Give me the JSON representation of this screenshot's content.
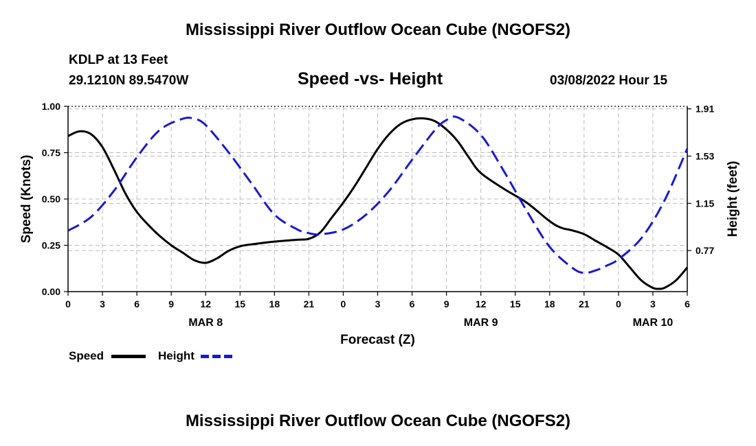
{
  "page": {
    "title_top": "Mississippi River Outflow Ocean Cube (NGOFS2)",
    "title_bottom": "Mississippi River Outflow Ocean Cube (NGOFS2)",
    "station": "KDLP at 13 Feet",
    "coords": "29.1210N  89.5470W",
    "subtitle": "Speed -vs- Height",
    "datetime": "03/08/2022 Hour 15"
  },
  "legend": {
    "speed_label": "Speed",
    "height_label": "Height"
  },
  "colors": {
    "speed": "#000000",
    "height": "#1a1acc",
    "grid": "#bbbbbb"
  },
  "chart_data": {
    "type": "line",
    "title": "Speed -vs- Height",
    "xlabel": "Forecast (Z)",
    "ylabel": "Speed (Knots)",
    "y2label": "Height (feet)",
    "x_hours_range": [
      0,
      54
    ],
    "x_tick_labels": [
      "0",
      "3",
      "6",
      "9",
      "12",
      "15",
      "18",
      "21",
      "0",
      "3",
      "6",
      "9",
      "12",
      "15",
      "18",
      "21",
      "0",
      "3",
      "6"
    ],
    "x_tick_hours": [
      0,
      3,
      6,
      9,
      12,
      15,
      18,
      21,
      24,
      27,
      30,
      33,
      36,
      39,
      42,
      45,
      48,
      51,
      54
    ],
    "date_labels": [
      {
        "label": "MAR 8",
        "hour": 12
      },
      {
        "label": "MAR 9",
        "hour": 36
      },
      {
        "label": "MAR 10",
        "hour": 51
      }
    ],
    "ylim": [
      0,
      1.0
    ],
    "y_ticks": [
      "0.00",
      "0.25",
      "0.50",
      "0.75",
      "1.00"
    ],
    "y2lim": [
      0.44,
      1.93
    ],
    "y2_ticks": [
      "0.77",
      "1.15",
      "1.53",
      "1.91"
    ],
    "series": [
      {
        "name": "Speed",
        "axis": "left",
        "style": "solid",
        "x": [
          0,
          1,
          2,
          3,
          4,
          5,
          6,
          7,
          8,
          9,
          10,
          11,
          12,
          13,
          14,
          15,
          16,
          18,
          20,
          21,
          22,
          23,
          24,
          25,
          26,
          27,
          28,
          29,
          30,
          31,
          32,
          33,
          34,
          35,
          36,
          38,
          40,
          42,
          43,
          44,
          45,
          46,
          47,
          48,
          49,
          50,
          51,
          51.5,
          52,
          53,
          54
        ],
        "values": [
          0.84,
          0.865,
          0.85,
          0.78,
          0.66,
          0.53,
          0.43,
          0.36,
          0.3,
          0.25,
          0.21,
          0.17,
          0.155,
          0.18,
          0.22,
          0.245,
          0.255,
          0.27,
          0.28,
          0.285,
          0.32,
          0.4,
          0.48,
          0.57,
          0.67,
          0.77,
          0.85,
          0.905,
          0.93,
          0.935,
          0.92,
          0.875,
          0.81,
          0.72,
          0.64,
          0.555,
          0.48,
          0.38,
          0.345,
          0.33,
          0.31,
          0.275,
          0.24,
          0.2,
          0.13,
          0.06,
          0.02,
          0.015,
          0.02,
          0.06,
          0.13
        ]
      },
      {
        "name": "Height",
        "axis": "right",
        "style": "dashed",
        "x": [
          0,
          2,
          4,
          6,
          8,
          10,
          11,
          12,
          14,
          16,
          18,
          20,
          21,
          22,
          24,
          26,
          28,
          30,
          32,
          33,
          34,
          36,
          38,
          40,
          42,
          44,
          45,
          46,
          47,
          48,
          50,
          52,
          54
        ],
        "values": [
          0.93,
          1.04,
          1.25,
          1.52,
          1.74,
          1.83,
          1.83,
          1.78,
          1.56,
          1.31,
          1.06,
          0.94,
          0.91,
          0.9,
          0.94,
          1.06,
          1.25,
          1.5,
          1.74,
          1.82,
          1.84,
          1.7,
          1.41,
          1.09,
          0.8,
          0.63,
          0.59,
          0.61,
          0.65,
          0.7,
          0.87,
          1.17,
          1.59
        ]
      }
    ]
  }
}
